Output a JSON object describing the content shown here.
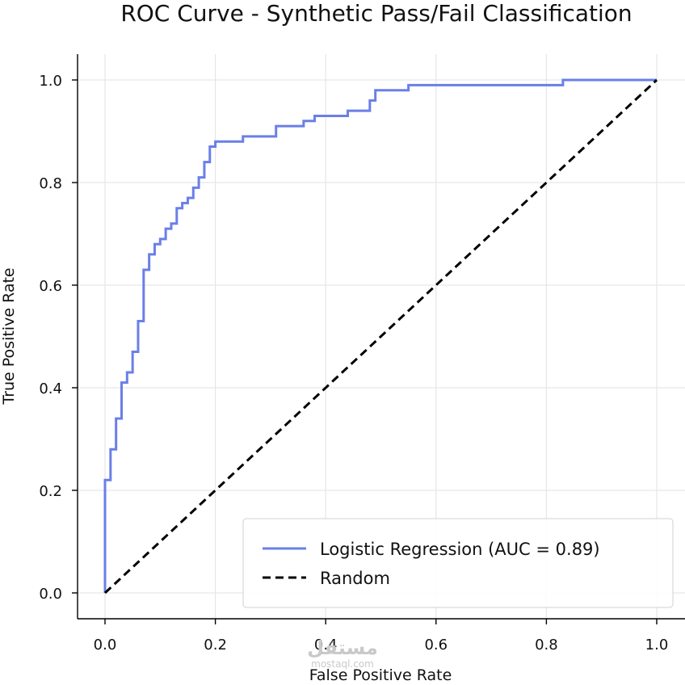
{
  "chart_data": {
    "type": "line",
    "title": "ROC Curve - Synthetic Pass/Fail Classification",
    "xlabel": "False Positive Rate",
    "ylabel": "True Positive Rate",
    "xlim": [
      -0.05,
      1.05
    ],
    "ylim": [
      -0.05,
      1.05
    ],
    "grid": true,
    "legend_position": "lower-right",
    "xticks": [
      0.0,
      0.2,
      0.4,
      0.6,
      0.8,
      1.0
    ],
    "xtick_labels": [
      "0.0",
      "0.2",
      "0.4",
      "0.6",
      "0.8",
      "1.0"
    ],
    "yticks": [
      0.0,
      0.2,
      0.4,
      0.6,
      0.8,
      1.0
    ],
    "ytick_labels": [
      "0.0",
      "0.2",
      "0.4",
      "0.6",
      "0.8",
      "1.0"
    ],
    "series": [
      {
        "name": "Logistic Regression (AUC = 0.89)",
        "style": "solid",
        "color": "#6a7fe8",
        "x": [
          0.0,
          0.0,
          0.0,
          0.01,
          0.01,
          0.02,
          0.02,
          0.03,
          0.03,
          0.04,
          0.04,
          0.05,
          0.05,
          0.06,
          0.06,
          0.07,
          0.07,
          0.08,
          0.08,
          0.09,
          0.09,
          0.1,
          0.1,
          0.11,
          0.11,
          0.12,
          0.12,
          0.13,
          0.13,
          0.14,
          0.14,
          0.15,
          0.15,
          0.16,
          0.16,
          0.17,
          0.17,
          0.18,
          0.18,
          0.19,
          0.19,
          0.2,
          0.2,
          0.25,
          0.25,
          0.31,
          0.31,
          0.36,
          0.36,
          0.38,
          0.38,
          0.44,
          0.44,
          0.48,
          0.48,
          0.49,
          0.49,
          0.55,
          0.55,
          0.83,
          0.83,
          1.0
        ],
        "y": [
          0.0,
          0.0,
          0.22,
          0.22,
          0.28,
          0.28,
          0.34,
          0.34,
          0.41,
          0.41,
          0.43,
          0.43,
          0.47,
          0.47,
          0.53,
          0.53,
          0.63,
          0.63,
          0.66,
          0.66,
          0.68,
          0.68,
          0.69,
          0.69,
          0.71,
          0.71,
          0.72,
          0.72,
          0.75,
          0.75,
          0.76,
          0.76,
          0.77,
          0.77,
          0.79,
          0.79,
          0.81,
          0.81,
          0.84,
          0.84,
          0.87,
          0.87,
          0.88,
          0.88,
          0.89,
          0.89,
          0.91,
          0.91,
          0.92,
          0.92,
          0.93,
          0.93,
          0.94,
          0.94,
          0.96,
          0.96,
          0.98,
          0.98,
          0.99,
          0.99,
          1.0,
          1.0
        ]
      },
      {
        "name": "Random",
        "style": "dashed",
        "color": "#000000",
        "x": [
          0.0,
          1.0
        ],
        "y": [
          0.0,
          1.0
        ]
      }
    ]
  },
  "watermark": {
    "text": "مستقل",
    "subtext": "mostaql.com"
  }
}
